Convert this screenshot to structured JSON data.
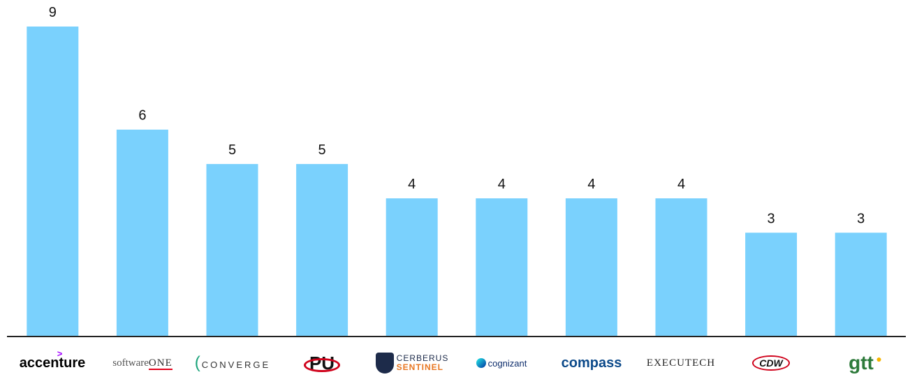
{
  "chart_data": {
    "type": "bar",
    "categories": [
      "accenture",
      "softwareONE",
      "CONVERGE",
      "PU",
      "CERBERUS SENTINEL",
      "cognizant",
      "compass",
      "EXECUTECH",
      "CDW",
      "gtt"
    ],
    "values": [
      9,
      6,
      5,
      5,
      4,
      4,
      4,
      4,
      3,
      3
    ],
    "value_labels": [
      "9",
      "6",
      "5",
      "5",
      "4",
      "4",
      "4",
      "4",
      "3",
      "3"
    ],
    "ylim": [
      0,
      9
    ],
    "bar_color": "#7ad1fd",
    "axis_color": "#222222",
    "grid": false,
    "legend": "none"
  },
  "logos": [
    {
      "name": "accenture-logo",
      "text": "accenture",
      "accent": ">"
    },
    {
      "name": "softwareone-logo",
      "text": "software",
      "suffix": "ONE"
    },
    {
      "name": "converge-logo",
      "text": "CONVERGE"
    },
    {
      "name": "pu-logo",
      "text": "PU"
    },
    {
      "name": "cerberus-sentinel-logo",
      "line1": "CERBERUS",
      "line2": "SENTINEL"
    },
    {
      "name": "cognizant-logo",
      "text": "cognizant"
    },
    {
      "name": "compass-logo",
      "text": "compass"
    },
    {
      "name": "executech-logo",
      "text": "EXECUTECH"
    },
    {
      "name": "cdw-logo",
      "text": "CDW"
    },
    {
      "name": "gtt-logo",
      "text": "gtt"
    }
  ]
}
